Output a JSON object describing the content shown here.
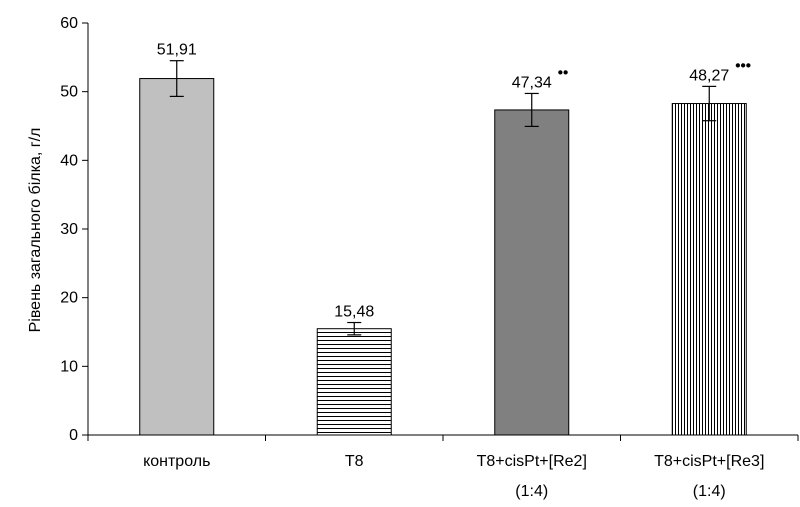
{
  "chart_data": {
    "type": "bar",
    "title": "",
    "xlabel": "",
    "ylabel": "Рівень загального білка, г/л",
    "ylim": [
      0,
      60
    ],
    "yticks": [
      0,
      10,
      20,
      30,
      40,
      50,
      60
    ],
    "grid": false,
    "legend": "none",
    "categories": [
      [
        "контроль"
      ],
      [
        "T8"
      ],
      [
        "T8+cisPt+[Re2]",
        "(1:4)"
      ],
      [
        "T8+cisPt+[Re3]",
        "(1:4)"
      ]
    ],
    "values": [
      51.91,
      15.48,
      47.34,
      48.27
    ],
    "errors": [
      2.6,
      0.9,
      2.4,
      2.5
    ],
    "data_labels": [
      "51,91",
      "15,48",
      "47,34",
      "48,27"
    ],
    "significance": [
      "",
      "",
      "••",
      "•••"
    ],
    "bar_fills": [
      "solid-light-gray",
      "horizontal-stripes",
      "solid-dark-gray",
      "vertical-stripes"
    ],
    "colors": {
      "light_gray": "#c0c0c0",
      "dark_gray": "#808080",
      "stroke": "#000000",
      "background": "#ffffff"
    }
  }
}
